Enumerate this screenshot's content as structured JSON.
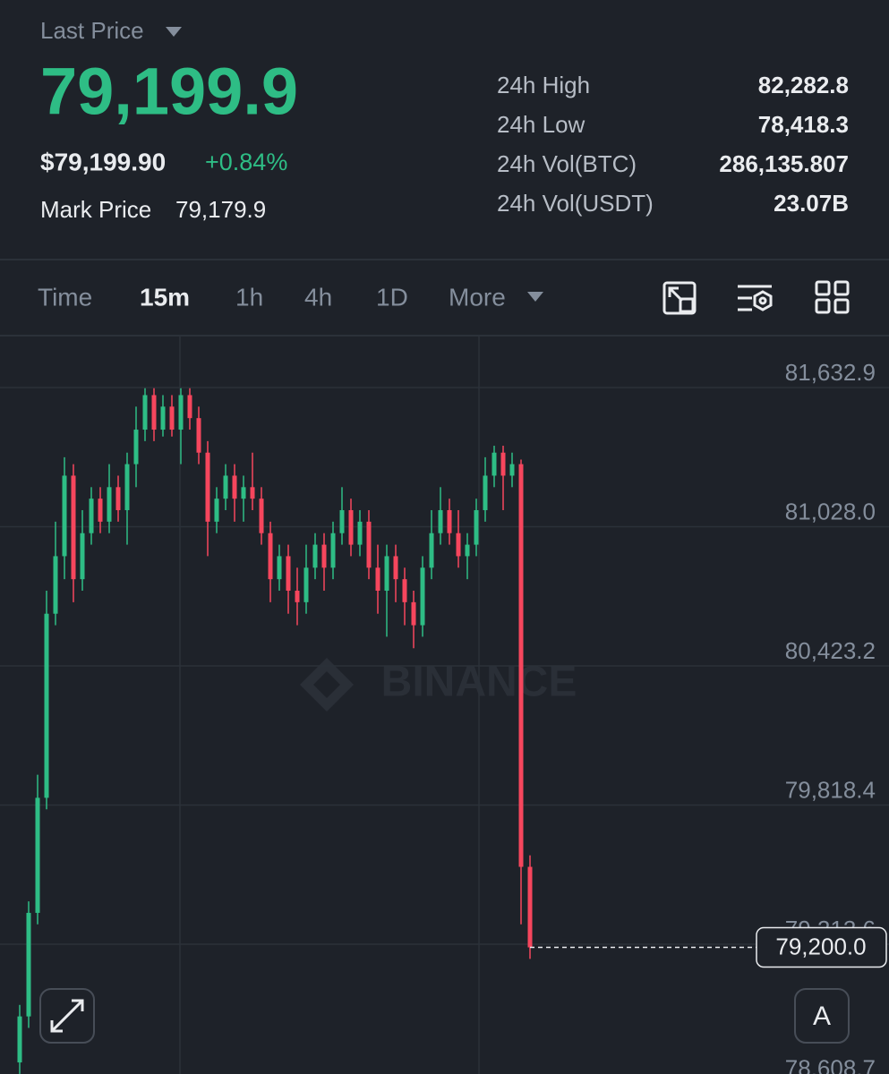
{
  "header": {
    "label": "Last Price",
    "last_price": "79,199.9",
    "usd_price": "$79,199.90",
    "change": "+0.84%",
    "mark_price_label": "Mark Price",
    "mark_price": "79,179.9"
  },
  "stats": [
    {
      "label": "24h High",
      "value": "82,282.8"
    },
    {
      "label": "24h Low",
      "value": "78,418.3"
    },
    {
      "label": "24h Vol(BTC)",
      "value": "286,135.807"
    },
    {
      "label": "24h Vol(USDT)",
      "value": "23.07B"
    }
  ],
  "tabs": [
    "Time",
    "15m",
    "1h",
    "4h",
    "1D",
    "More"
  ],
  "controls": {
    "auto_button": "A"
  },
  "chart_data": {
    "type": "candlestick",
    "watermark": "BINANCE",
    "up_color": "#2ebd85",
    "down_color": "#f6465d",
    "grid": true,
    "ylim": [
      78649.7,
      81858.5
    ],
    "yticks": [
      {
        "value": 81632.9,
        "label": "81,632.9"
      },
      {
        "value": 81028.0,
        "label": "81,028.0"
      },
      {
        "value": 80423.2,
        "label": "80,423.2"
      },
      {
        "value": 79818.4,
        "label": "79,818.4"
      },
      {
        "value": 79213.6,
        "label": "79,213.6"
      },
      {
        "value": 78608.7,
        "label": "78,608.7"
      }
    ],
    "last_price": {
      "value": 79200.0,
      "label": "79,200.0"
    },
    "open": [
      78700,
      78900,
      79350,
      79850,
      80650,
      80900,
      81250,
      80800,
      81000,
      81150,
      81050,
      81200,
      81100,
      81300,
      81450,
      81600,
      81450,
      81550,
      81450,
      81600,
      81500,
      81350,
      81050,
      81150,
      81250,
      81150,
      81200,
      81150,
      81000,
      80800,
      80900,
      80750,
      80700,
      80850,
      80950,
      80850,
      81000,
      81100,
      80950,
      81050,
      80850,
      80750,
      80900,
      80800,
      80700,
      80600,
      80850,
      81000,
      81100,
      81000,
      80900,
      80950,
      81100,
      81250,
      81350,
      81250,
      81300,
      79550
    ],
    "high": [
      78950,
      79400,
      79950,
      80750,
      81050,
      81330,
      81300,
      81100,
      81200,
      81200,
      81300,
      81250,
      81350,
      81550,
      81630,
      81630,
      81600,
      81600,
      81630,
      81630,
      81550,
      81400,
      81200,
      81300,
      81300,
      81250,
      81350,
      81200,
      81050,
      80950,
      80950,
      80850,
      80950,
      81000,
      81000,
      81050,
      81200,
      81150,
      81100,
      81100,
      80950,
      80950,
      80950,
      80850,
      80750,
      80900,
      81100,
      81200,
      81150,
      81100,
      81000,
      81150,
      81330,
      81380,
      81380,
      81350,
      81320,
      79600
    ],
    "low": [
      78650,
      78850,
      79300,
      79800,
      80600,
      80800,
      80700,
      80750,
      80950,
      81000,
      81000,
      81050,
      80950,
      81200,
      81400,
      81400,
      81420,
      81420,
      81300,
      81450,
      81300,
      80900,
      81000,
      81100,
      81050,
      81050,
      81100,
      80950,
      80700,
      80750,
      80650,
      80600,
      80650,
      80800,
      80750,
      80800,
      80950,
      80900,
      80900,
      80800,
      80650,
      80550,
      80700,
      80600,
      80500,
      80550,
      80800,
      80950,
      80950,
      80850,
      80800,
      80900,
      81050,
      81200,
      81100,
      81200,
      79300,
      79150
    ],
    "close": [
      78900,
      79350,
      79850,
      80650,
      80900,
      81250,
      80800,
      81000,
      81150,
      81050,
      81200,
      81100,
      81300,
      81450,
      81600,
      81450,
      81550,
      81450,
      81600,
      81500,
      81350,
      81050,
      81150,
      81250,
      81150,
      81200,
      81150,
      81000,
      80800,
      80900,
      80750,
      80700,
      80850,
      80950,
      80850,
      81000,
      81100,
      80950,
      81050,
      80850,
      80750,
      80900,
      80800,
      80700,
      80600,
      80850,
      81000,
      81100,
      81000,
      80900,
      80950,
      81100,
      81250,
      81350,
      81250,
      81300,
      79550,
      79200
    ]
  }
}
